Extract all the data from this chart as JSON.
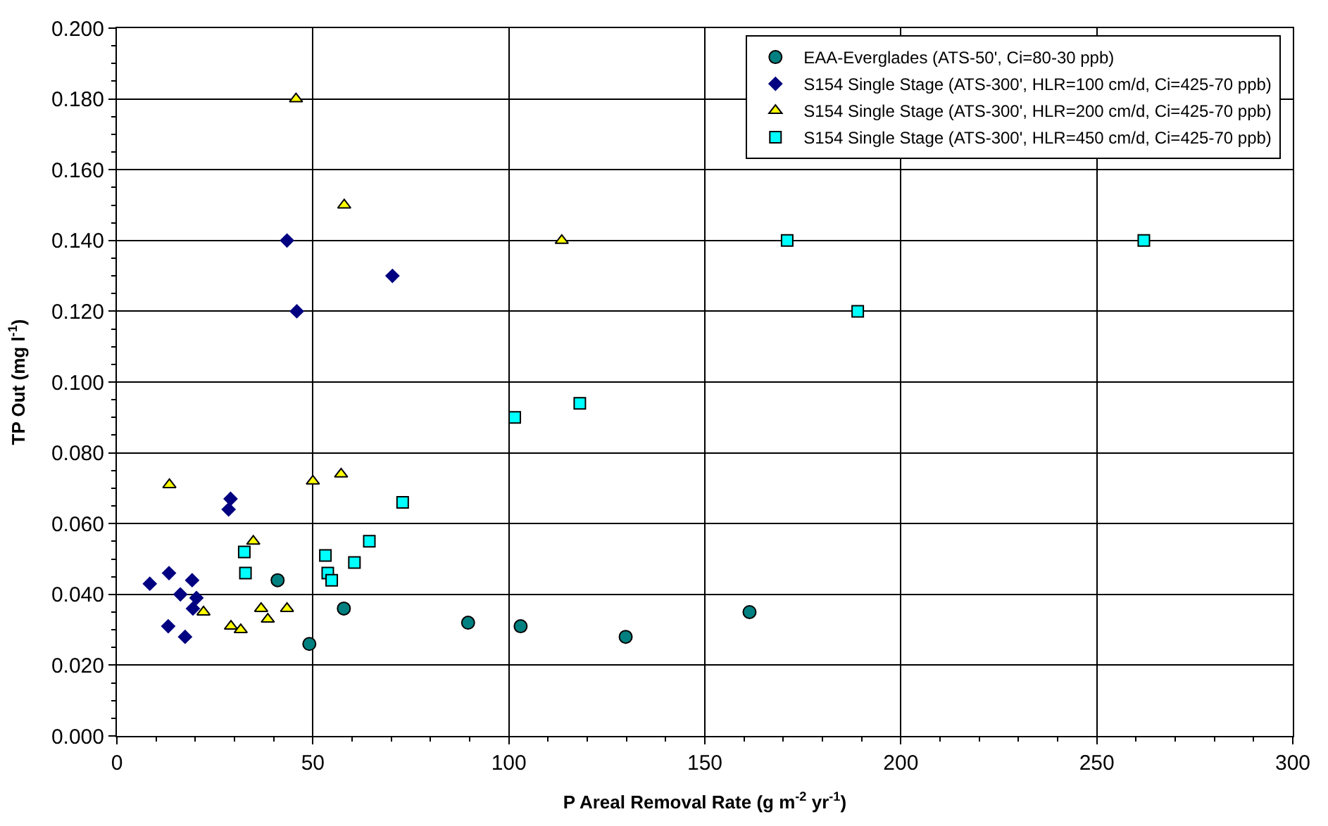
{
  "chart_data": {
    "type": "scatter",
    "xlabel": "P Areal Removal Rate (g m$^{-2}$ yr$^{-1}$)",
    "ylabel": "TP Out (mg l$^{-1}$)",
    "xlim": [
      0,
      300
    ],
    "xticks": [
      0,
      50,
      100,
      150,
      200,
      250,
      300
    ],
    "ylim": [
      0,
      0.2
    ],
    "yticks": [
      {
        "value": 0,
        "label": "0.000"
      },
      {
        "value": 0.02,
        "label": "0.020"
      },
      {
        "value": 0.04,
        "label": "0.040"
      },
      {
        "value": 0.06,
        "label": "0.060"
      },
      {
        "value": 0.08,
        "label": "0.080"
      },
      {
        "value": 0.1,
        "label": "0.100"
      },
      {
        "value": 0.12,
        "label": "0.120"
      },
      {
        "value": 0.14,
        "label": "0.140"
      },
      {
        "value": 0.16,
        "label": "0.160"
      },
      {
        "value": 0.18,
        "label": "0.180"
      },
      {
        "value": 0.2,
        "label": "0.200"
      }
    ],
    "grid": true,
    "legend": "top right",
    "series": [
      {
        "name": "EAA-Everglades (ATS-50', Ci=80-30 ppb)",
        "color": "#008080",
        "marker": "circle",
        "x": [
          41.0,
          49.1,
          57.9,
          89.6,
          103.0,
          129.8,
          161.4
        ],
        "values": [
          0.044,
          0.026,
          0.036,
          0.032,
          0.031,
          0.028,
          0.035
        ]
      },
      {
        "name": "S154 Single Stage (ATS-300', HLR=100 cm/d, Ci=425-70 ppb)",
        "color": "#000080",
        "marker": "diamond",
        "x": [
          8.4,
          13.3,
          13.1,
          16.2,
          17.4,
          19.2,
          20.3,
          19.4,
          29.0,
          28.5,
          43.4,
          45.9,
          70.3
        ],
        "values": [
          0.043,
          0.046,
          0.031,
          0.04,
          0.028,
          0.044,
          0.039,
          0.036,
          0.067,
          0.064,
          0.14,
          0.12,
          0.13
        ]
      },
      {
        "name": "S154 Single Stage (ATS-300', HLR=200 cm/d, Ci=425-70 ppb)",
        "color": "#ffff00",
        "marker": "triangle",
        "x": [
          13.4,
          22.1,
          29.1,
          31.6,
          34.8,
          36.8,
          38.5,
          43.4,
          50.0,
          57.2,
          45.7,
          58.0,
          113.5
        ],
        "values": [
          0.071,
          0.035,
          0.031,
          0.03,
          0.055,
          0.036,
          0.033,
          0.036,
          0.072,
          0.074,
          0.18,
          0.15,
          0.14
        ]
      },
      {
        "name": "S154 Single Stage (ATS-300', HLR=450 cm/d, Ci=425-70 ppb)",
        "color": "#00ffff",
        "marker": "square",
        "x": [
          32.5,
          32.8,
          53.2,
          53.8,
          54.8,
          60.6,
          64.4,
          72.9,
          101.5,
          118.1,
          171.0,
          189.0,
          262.0
        ],
        "values": [
          0.052,
          0.046,
          0.051,
          0.046,
          0.044,
          0.049,
          0.055,
          0.066,
          0.09,
          0.094,
          0.14,
          0.12,
          0.14
        ]
      }
    ]
  }
}
